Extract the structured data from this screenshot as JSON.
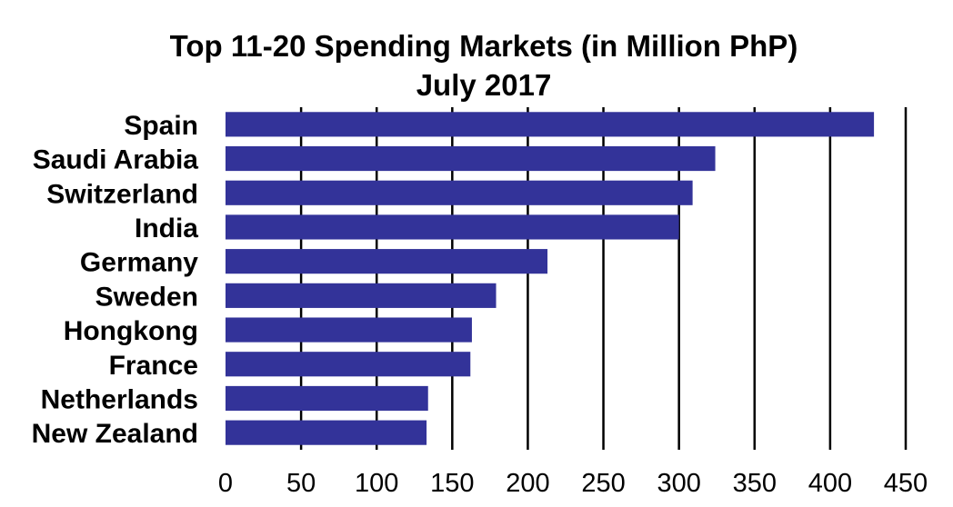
{
  "chart_data": {
    "type": "bar",
    "orientation": "horizontal",
    "title": "Top 11-20 Spending Markets (in Million PhP)",
    "subtitle": "July 2017",
    "xlabel": "",
    "ylabel": "",
    "categories": [
      "Spain",
      "Saudi Arabia",
      "Switzerland",
      "India",
      "Germany",
      "Sweden",
      "Hongkong",
      "France",
      "Netherlands",
      "New Zealand"
    ],
    "values": [
      429,
      324,
      309,
      300,
      213,
      179,
      163,
      162,
      134,
      133
    ],
    "xlim": [
      0,
      450
    ],
    "xticks": [
      0,
      50,
      100,
      150,
      200,
      250,
      300,
      350,
      400,
      450
    ],
    "grid": true,
    "legend": "none",
    "colors": {
      "bar": "#333399",
      "grid": "#000000",
      "text": "#000000"
    }
  }
}
